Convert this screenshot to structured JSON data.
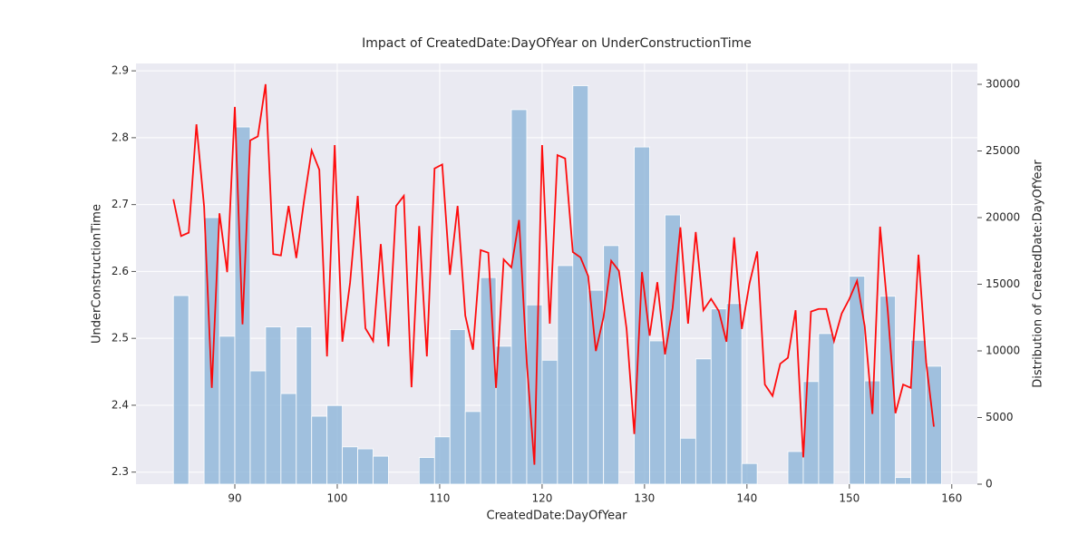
{
  "chart_data": {
    "type": "combo",
    "title": "Impact of CreatedDate:DayOfYear on UnderConstructionTime",
    "x_label": "CreatedDate:DayOfYear",
    "y_label": "UnderConstructionTime",
    "y2_label": "Distribution of CreatedDate:DayOfYear",
    "xlim": [
      80.35,
      162.5
    ],
    "xticks": [
      90,
      100,
      110,
      120,
      130,
      140,
      150,
      160
    ],
    "ylim": [
      2.282,
      2.911
    ],
    "yticks": [
      2.3,
      2.4,
      2.5,
      2.6,
      2.7,
      2.8,
      2.9
    ],
    "y2lim": [
      0,
      31565
    ],
    "y2ticks": [
      0,
      5000,
      10000,
      15000,
      20000,
      25000,
      30000
    ],
    "grid": true,
    "series": [
      {
        "type": "histogram",
        "axis": "y2",
        "color": "#8db5d8",
        "bins": [
          84,
          85.5,
          87,
          88.5,
          90,
          91.5,
          93,
          94.5,
          96,
          97.5,
          99,
          100.5,
          102,
          103.5,
          105,
          106.5,
          108,
          109.5,
          111,
          112.5,
          114,
          115.5,
          117,
          118.5,
          120,
          121.5,
          123,
          124.5,
          126,
          127.5,
          129,
          130.5,
          132,
          133.5,
          135,
          136.5,
          138,
          139.5,
          141,
          142.5,
          144,
          145.5,
          147,
          148.5,
          150,
          151.5,
          153,
          154.5,
          156,
          157.5,
          159
        ],
        "values": [
          14150,
          0,
          20000,
          11100,
          26800,
          8500,
          11800,
          6800,
          11800,
          5100,
          5900,
          2800,
          2650,
          2100,
          0,
          0,
          2000,
          3550,
          11600,
          5450,
          15500,
          10350,
          28100,
          13450,
          9300,
          16400,
          29900,
          14550,
          17900,
          0,
          25300,
          10750,
          20200,
          3450,
          9400,
          13150,
          13550,
          1550,
          0,
          0,
          2450,
          7700,
          11300,
          0,
          15600,
          7750,
          14100,
          500,
          10800,
          8850
        ]
      },
      {
        "type": "line",
        "axis": "y",
        "color": "#ff0000",
        "x": [
          84,
          84.75,
          85.5,
          86.25,
          87,
          87.75,
          88.5,
          89.25,
          90,
          90.75,
          91.5,
          92.25,
          93,
          93.75,
          94.5,
          95.25,
          96,
          96.75,
          97.5,
          98.25,
          99,
          99.75,
          100.5,
          101.25,
          102,
          102.75,
          103.5,
          104.25,
          105,
          105.75,
          106.5,
          107.25,
          108,
          108.75,
          109.5,
          110.25,
          111,
          111.75,
          112.5,
          113.25,
          114,
          114.75,
          115.5,
          116.25,
          117,
          117.75,
          118.5,
          119.25,
          120,
          120.75,
          121.5,
          122.25,
          123,
          123.75,
          124.5,
          125.25,
          126,
          126.75,
          127.5,
          128.25,
          129,
          129.75,
          130.5,
          131.25,
          132,
          132.75,
          133.5,
          134.25,
          135,
          135.75,
          136.5,
          137.25,
          138,
          138.75,
          139.5,
          140.25,
          141,
          141.75,
          142.5,
          143.25,
          144,
          144.75,
          145.5,
          146.25,
          147,
          147.75,
          148.5,
          149.25,
          150,
          150.75,
          151.5,
          152.25,
          153,
          153.75,
          154.5,
          155.25,
          156,
          156.75,
          157.5,
          158.25
        ],
        "values": [
          2.708,
          2.653,
          2.658,
          2.82,
          2.697,
          2.426,
          2.687,
          2.599,
          2.846,
          2.521,
          2.796,
          2.802,
          2.88,
          2.626,
          2.624,
          2.698,
          2.62,
          2.705,
          2.781,
          2.752,
          2.473,
          2.789,
          2.495,
          2.583,
          2.713,
          2.515,
          2.496,
          2.641,
          2.488,
          2.698,
          2.713,
          2.427,
          2.668,
          2.473,
          2.754,
          2.76,
          2.595,
          2.698,
          2.534,
          2.483,
          2.632,
          2.628,
          2.426,
          2.618,
          2.606,
          2.677,
          2.465,
          2.311,
          2.789,
          2.522,
          2.774,
          2.769,
          2.629,
          2.621,
          2.593,
          2.481,
          2.532,
          2.616,
          2.601,
          2.514,
          2.357,
          2.599,
          2.504,
          2.584,
          2.476,
          2.546,
          2.666,
          2.522,
          2.659,
          2.542,
          2.559,
          2.541,
          2.495,
          2.651,
          2.514,
          2.582,
          2.63,
          2.431,
          2.414,
          2.462,
          2.471,
          2.542,
          2.322,
          2.54,
          2.544,
          2.544,
          2.496,
          2.537,
          2.559,
          2.586,
          2.518,
          2.387,
          2.667,
          2.541,
          2.388,
          2.431,
          2.426,
          2.625,
          2.464,
          2.368
        ]
      }
    ]
  }
}
